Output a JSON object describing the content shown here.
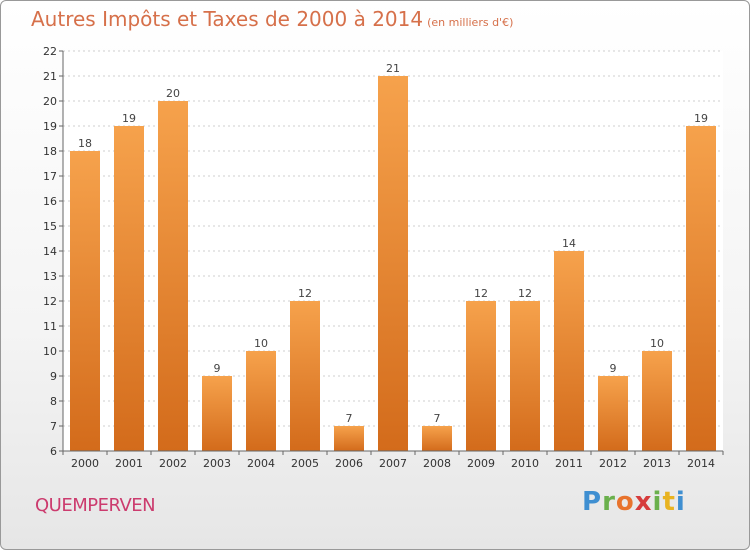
{
  "page": {
    "title": "Autres Impôts et Taxes de 2000 à 2014",
    "subtitle": "(en milliers d'€)",
    "place": "QUEMPERVEN",
    "logo_letters": [
      "P",
      "r",
      "o",
      "x",
      "i",
      "t",
      "i"
    ],
    "logo_colors": [
      "#3f8fd1",
      "#6ab04c",
      "#e8732d",
      "#d63c3c",
      "#6ab04c",
      "#e8b321",
      "#3f8fd1"
    ]
  },
  "colors": {
    "bar_light": "#f6a24c",
    "bar_dark": "#d36b1b",
    "grid": "#cfcfcf",
    "axis": "#666666"
  },
  "chart_data": {
    "type": "bar",
    "categories": [
      "2000",
      "2001",
      "2002",
      "2003",
      "2004",
      "2005",
      "2006",
      "2007",
      "2008",
      "2009",
      "2010",
      "2011",
      "2012",
      "2013",
      "2014"
    ],
    "values": [
      18,
      19,
      20,
      9,
      10,
      12,
      7,
      21,
      7,
      12,
      12,
      14,
      9,
      10,
      19
    ],
    "data_labels": [
      "18",
      "19",
      "20",
      "9",
      "10",
      "12",
      "7",
      "21",
      "7",
      "12",
      "12",
      "14",
      "9",
      "10",
      "19"
    ],
    "yticks": [
      "6",
      "7",
      "8",
      "9",
      "10",
      "11",
      "12",
      "13",
      "14",
      "15",
      "16",
      "17",
      "18",
      "19",
      "20",
      "21",
      "22"
    ],
    "ylim": [
      6,
      22
    ],
    "grid": true,
    "legend": "none"
  }
}
